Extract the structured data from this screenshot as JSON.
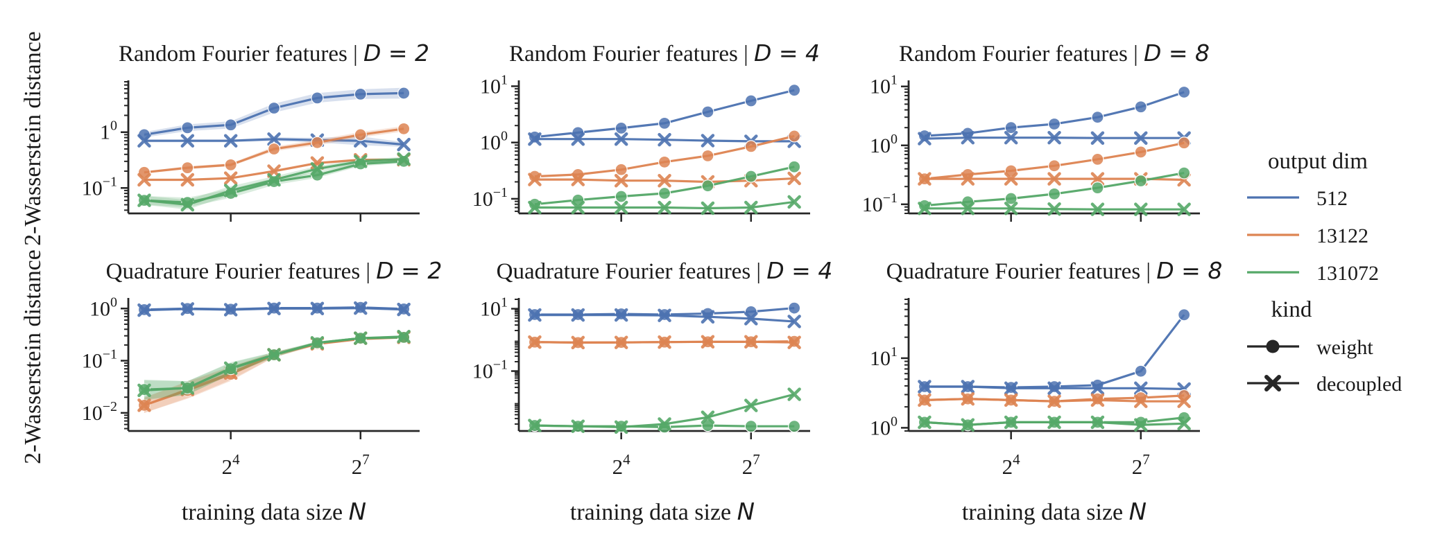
{
  "figure": {
    "ylabel": "2-Wasserstein distance",
    "xlabel_prefix": "training data size ",
    "xlabel_var": "N",
    "legend": {
      "hue_title": "output dim",
      "style_title": "kind"
    }
  },
  "colors": {
    "512": "#4c72b0",
    "13122": "#dd8452",
    "131072": "#55a868",
    "axis": "#262626"
  },
  "chart_data": [
    {
      "type": "line",
      "title_prefix": "Random Fourier features | ",
      "title_math": "D = 2",
      "yscale": "log",
      "ylim": [
        0.035,
        8
      ],
      "yticks": [
        {
          "v": 1,
          "m": "1",
          "e": "0"
        },
        {
          "v": 0.1,
          "m": "10",
          "e": "−1"
        }
      ],
      "show_xticklabels": false,
      "x": [
        4,
        8,
        16,
        32,
        64,
        128,
        256
      ],
      "series": [
        {
          "output_dim": "512",
          "kind": "weight",
          "values": [
            0.9,
            1.2,
            1.35,
            2.7,
            4.1,
            4.8,
            5.0
          ],
          "band": [
            0.12,
            0.15,
            0.16,
            0.2,
            0.22,
            0.22,
            0.25
          ]
        },
        {
          "output_dim": "512",
          "kind": "decoupled",
          "values": [
            0.7,
            0.7,
            0.7,
            0.75,
            0.72,
            0.7,
            0.6
          ],
          "band": [
            0.06,
            0.06,
            0.06,
            0.08,
            0.1,
            0.2,
            0.1
          ]
        },
        {
          "output_dim": "13122",
          "kind": "weight",
          "values": [
            0.19,
            0.23,
            0.26,
            0.5,
            0.65,
            0.9,
            1.15
          ],
          "band": [
            0.05,
            0.06,
            0.06,
            0.1,
            0.12,
            0.12,
            0.12
          ]
        },
        {
          "output_dim": "13122",
          "kind": "decoupled",
          "values": [
            0.14,
            0.14,
            0.15,
            0.2,
            0.28,
            0.32,
            0.32
          ],
          "band": [
            0.04,
            0.04,
            0.04,
            0.05,
            0.05,
            0.05,
            0.05
          ]
        },
        {
          "output_dim": "131072",
          "kind": "weight",
          "values": [
            0.06,
            0.055,
            0.08,
            0.13,
            0.17,
            0.27,
            0.3
          ],
          "band": [
            0.2,
            0.22,
            0.2,
            0.15,
            0.12,
            0.1,
            0.08
          ]
        },
        {
          "output_dim": "131072",
          "kind": "decoupled",
          "values": [
            0.06,
            0.05,
            0.09,
            0.14,
            0.22,
            0.3,
            0.33
          ],
          "band": [
            0.2,
            0.22,
            0.2,
            0.15,
            0.12,
            0.1,
            0.08
          ]
        }
      ]
    },
    {
      "type": "line",
      "title_prefix": "Random Fourier features | ",
      "title_math": "D = 4",
      "yscale": "log",
      "ylim": [
        0.055,
        12
      ],
      "yticks": [
        {
          "v": 10,
          "m": "10",
          "e": "1"
        },
        {
          "v": 1,
          "m": "10",
          "e": "0"
        },
        {
          "v": 0.1,
          "m": "10",
          "e": "−1"
        }
      ],
      "show_xticklabels": false,
      "x": [
        4,
        8,
        16,
        32,
        64,
        128,
        256
      ],
      "series": [
        {
          "output_dim": "512",
          "kind": "weight",
          "values": [
            1.25,
            1.5,
            1.8,
            2.2,
            3.5,
            5.5,
            8.5
          ],
          "band": [
            0.03,
            0.03,
            0.03,
            0.04,
            0.04,
            0.04,
            0.04
          ]
        },
        {
          "output_dim": "512",
          "kind": "decoupled",
          "values": [
            1.15,
            1.15,
            1.15,
            1.12,
            1.08,
            1.05,
            1.05
          ],
          "band": [
            0.02,
            0.02,
            0.02,
            0.02,
            0.02,
            0.02,
            0.02
          ]
        },
        {
          "output_dim": "13122",
          "kind": "weight",
          "values": [
            0.25,
            0.27,
            0.33,
            0.45,
            0.58,
            0.85,
            1.3
          ],
          "band": [
            0.03,
            0.03,
            0.03,
            0.04,
            0.04,
            0.04,
            0.05
          ]
        },
        {
          "output_dim": "13122",
          "kind": "decoupled",
          "values": [
            0.22,
            0.22,
            0.21,
            0.21,
            0.2,
            0.21,
            0.23
          ],
          "band": [
            0.02,
            0.02,
            0.02,
            0.02,
            0.02,
            0.02,
            0.02
          ]
        },
        {
          "output_dim": "131072",
          "kind": "weight",
          "values": [
            0.08,
            0.095,
            0.11,
            0.125,
            0.17,
            0.25,
            0.37
          ],
          "band": [
            0.04,
            0.04,
            0.04,
            0.04,
            0.04,
            0.04,
            0.04
          ]
        },
        {
          "output_dim": "131072",
          "kind": "decoupled",
          "values": [
            0.07,
            0.07,
            0.07,
            0.07,
            0.068,
            0.07,
            0.088
          ],
          "band": [
            0.02,
            0.02,
            0.02,
            0.02,
            0.02,
            0.02,
            0.02
          ]
        }
      ]
    },
    {
      "type": "line",
      "title_prefix": "Random Fourier features | ",
      "title_math": "D = 8",
      "yscale": "log",
      "ylim": [
        0.07,
        12
      ],
      "yticks": [
        {
          "v": 10,
          "m": "10",
          "e": "1"
        },
        {
          "v": 1,
          "m": "10",
          "e": "0"
        },
        {
          "v": 0.1,
          "m": "10",
          "e": "−1"
        }
      ],
      "show_xticklabels": false,
      "x": [
        4,
        8,
        16,
        32,
        64,
        128,
        256
      ],
      "series": [
        {
          "output_dim": "512",
          "kind": "weight",
          "values": [
            1.45,
            1.6,
            2.0,
            2.3,
            3.0,
            4.5,
            8.0
          ],
          "band": [
            0.03,
            0.03,
            0.03,
            0.03,
            0.03,
            0.03,
            0.03
          ]
        },
        {
          "output_dim": "512",
          "kind": "decoupled",
          "values": [
            1.3,
            1.35,
            1.35,
            1.35,
            1.33,
            1.33,
            1.33
          ],
          "band": [
            0.02,
            0.02,
            0.02,
            0.02,
            0.02,
            0.02,
            0.02
          ]
        },
        {
          "output_dim": "13122",
          "kind": "weight",
          "values": [
            0.27,
            0.32,
            0.37,
            0.45,
            0.58,
            0.77,
            1.1
          ],
          "band": [
            0.03,
            0.03,
            0.03,
            0.03,
            0.03,
            0.03,
            0.03
          ]
        },
        {
          "output_dim": "13122",
          "kind": "decoupled",
          "values": [
            0.27,
            0.27,
            0.27,
            0.27,
            0.27,
            0.27,
            0.26
          ],
          "band": [
            0.02,
            0.02,
            0.02,
            0.02,
            0.02,
            0.02,
            0.02
          ]
        },
        {
          "output_dim": "131072",
          "kind": "weight",
          "values": [
            0.095,
            0.11,
            0.125,
            0.15,
            0.19,
            0.25,
            0.34
          ],
          "band": [
            0.03,
            0.03,
            0.03,
            0.03,
            0.03,
            0.03,
            0.03
          ]
        },
        {
          "output_dim": "131072",
          "kind": "decoupled",
          "values": [
            0.085,
            0.085,
            0.085,
            0.083,
            0.082,
            0.082,
            0.082
          ],
          "band": [
            0.02,
            0.02,
            0.02,
            0.02,
            0.02,
            0.02,
            0.02
          ]
        }
      ]
    },
    {
      "type": "line",
      "title_prefix": "Quadrature Fourier features | ",
      "title_math": "D = 2",
      "yscale": "log",
      "ylim": [
        0.0045,
        1.5
      ],
      "yticks": [
        {
          "v": 1,
          "m": "10",
          "e": "0"
        },
        {
          "v": 0.1,
          "m": "10",
          "e": "−1"
        },
        {
          "v": 0.01,
          "m": "10",
          "e": "−2"
        }
      ],
      "show_xticklabels": true,
      "x": [
        4,
        8,
        16,
        32,
        64,
        128,
        256
      ],
      "xticks": [
        {
          "v": 16,
          "m": "2",
          "e": "4"
        },
        {
          "v": 128,
          "m": "2",
          "e": "7"
        }
      ],
      "series": [
        {
          "output_dim": "512",
          "kind": "weight",
          "values": [
            0.95,
            1.0,
            0.97,
            1.02,
            1.02,
            1.05,
            0.98
          ],
          "band": [
            0.05,
            0.05,
            0.05,
            0.05,
            0.05,
            0.05,
            0.05
          ]
        },
        {
          "output_dim": "512",
          "kind": "decoupled",
          "values": [
            0.93,
            0.98,
            0.95,
            1.0,
            1.0,
            1.02,
            0.96
          ],
          "band": [
            0.05,
            0.05,
            0.05,
            0.05,
            0.05,
            0.05,
            0.05
          ]
        },
        {
          "output_dim": "13122",
          "kind": "weight",
          "values": [
            0.014,
            0.027,
            0.055,
            0.13,
            0.21,
            0.26,
            0.28
          ],
          "band": [
            0.4,
            0.45,
            0.35,
            0.12,
            0.06,
            0.05,
            0.05
          ]
        },
        {
          "output_dim": "13122",
          "kind": "decoupled",
          "values": [
            0.014,
            0.028,
            0.058,
            0.13,
            0.21,
            0.27,
            0.28
          ],
          "band": [
            0.4,
            0.45,
            0.35,
            0.12,
            0.06,
            0.05,
            0.05
          ]
        },
        {
          "output_dim": "131072",
          "kind": "weight",
          "values": [
            0.028,
            0.03,
            0.07,
            0.13,
            0.22,
            0.27,
            0.28
          ],
          "band": [
            0.55,
            0.35,
            0.3,
            0.12,
            0.06,
            0.05,
            0.05
          ]
        },
        {
          "output_dim": "131072",
          "kind": "decoupled",
          "values": [
            0.027,
            0.03,
            0.072,
            0.13,
            0.22,
            0.27,
            0.29
          ],
          "band": [
            0.55,
            0.35,
            0.3,
            0.12,
            0.06,
            0.05,
            0.05
          ]
        }
      ]
    },
    {
      "type": "line",
      "title_prefix": "Quadrature Fourier features | ",
      "title_math": "D = 4",
      "yscale": "log",
      "ylim": [
        0.0012,
        20
      ],
      "yticks": [
        {
          "v": 10,
          "m": "10",
          "e": "1"
        },
        {
          "v": 0.1,
          "m": "10",
          "e": "−1"
        }
      ],
      "show_xticklabels": true,
      "x": [
        4,
        8,
        16,
        32,
        64,
        128,
        256
      ],
      "xticks": [
        {
          "v": 16,
          "m": "2",
          "e": "4"
        },
        {
          "v": 128,
          "m": "2",
          "e": "7"
        }
      ],
      "series": [
        {
          "output_dim": "512",
          "kind": "weight",
          "values": [
            6.5,
            6.5,
            6.8,
            6.5,
            7.0,
            8.0,
            10.5
          ],
          "band": [
            0.04,
            0.04,
            0.04,
            0.04,
            0.04,
            0.04,
            0.04
          ]
        },
        {
          "output_dim": "512",
          "kind": "decoupled",
          "values": [
            6.3,
            6.3,
            6.3,
            6.1,
            5.5,
            4.8,
            3.9
          ],
          "band": [
            0.04,
            0.04,
            0.04,
            0.04,
            0.04,
            0.04,
            0.04
          ]
        },
        {
          "output_dim": "13122",
          "kind": "weight",
          "values": [
            0.85,
            0.82,
            0.83,
            0.85,
            0.87,
            0.87,
            0.9
          ],
          "band": [
            0.03,
            0.03,
            0.03,
            0.03,
            0.03,
            0.03,
            0.03
          ]
        },
        {
          "output_dim": "13122",
          "kind": "decoupled",
          "values": [
            0.85,
            0.82,
            0.83,
            0.85,
            0.87,
            0.87,
            0.83
          ],
          "band": [
            0.03,
            0.03,
            0.03,
            0.03,
            0.03,
            0.03,
            0.03
          ]
        },
        {
          "output_dim": "131072",
          "kind": "weight",
          "values": [
            0.0018,
            0.0017,
            0.0017,
            0.0016,
            0.0018,
            0.0017,
            0.0017
          ],
          "band": [
            0.05,
            0.05,
            0.05,
            0.05,
            0.05,
            0.05,
            0.05
          ]
        },
        {
          "output_dim": "131072",
          "kind": "decoupled",
          "values": [
            0.0018,
            0.0017,
            0.0016,
            0.002,
            0.0033,
            0.0079,
            0.018
          ],
          "band": [
            0.05,
            0.05,
            0.05,
            0.05,
            0.05,
            0.05,
            0.05
          ]
        }
      ]
    },
    {
      "type": "line",
      "title_prefix": "Quadrature Fourier features | ",
      "title_math": "D = 8",
      "yscale": "log",
      "ylim": [
        0.9,
        70
      ],
      "yticks": [
        {
          "v": 10,
          "m": "10",
          "e": "1"
        },
        {
          "v": 1,
          "m": "10",
          "e": "0"
        }
      ],
      "show_xticklabels": true,
      "x": [
        4,
        8,
        16,
        32,
        64,
        128,
        256
      ],
      "xticks": [
        {
          "v": 16,
          "m": "2",
          "e": "4"
        },
        {
          "v": 128,
          "m": "2",
          "e": "7"
        }
      ],
      "series": [
        {
          "output_dim": "512",
          "kind": "weight",
          "values": [
            3.9,
            3.9,
            3.8,
            3.9,
            4.1,
            6.5,
            42
          ],
          "band": [
            0.03,
            0.03,
            0.03,
            0.03,
            0.03,
            0.03,
            0.03
          ]
        },
        {
          "output_dim": "512",
          "kind": "decoupled",
          "values": [
            3.9,
            3.9,
            3.7,
            3.7,
            3.7,
            3.7,
            3.6
          ],
          "band": [
            0.03,
            0.03,
            0.03,
            0.03,
            0.03,
            0.03,
            0.03
          ]
        },
        {
          "output_dim": "13122",
          "kind": "weight",
          "values": [
            2.5,
            2.6,
            2.5,
            2.4,
            2.6,
            2.7,
            2.9
          ],
          "band": [
            0.03,
            0.03,
            0.03,
            0.03,
            0.03,
            0.03,
            0.03
          ]
        },
        {
          "output_dim": "13122",
          "kind": "decoupled",
          "values": [
            2.5,
            2.6,
            2.5,
            2.4,
            2.5,
            2.4,
            2.4
          ],
          "band": [
            0.03,
            0.03,
            0.03,
            0.03,
            0.03,
            0.03,
            0.03
          ]
        },
        {
          "output_dim": "131072",
          "kind": "weight",
          "values": [
            1.2,
            1.1,
            1.2,
            1.2,
            1.2,
            1.2,
            1.4
          ],
          "band": [
            0.03,
            0.03,
            0.03,
            0.03,
            0.03,
            0.03,
            0.03
          ]
        },
        {
          "output_dim": "131072",
          "kind": "decoupled",
          "values": [
            1.2,
            1.1,
            1.2,
            1.2,
            1.2,
            1.1,
            1.15
          ],
          "band": [
            0.03,
            0.03,
            0.03,
            0.03,
            0.03,
            0.03,
            0.03
          ]
        }
      ]
    }
  ]
}
